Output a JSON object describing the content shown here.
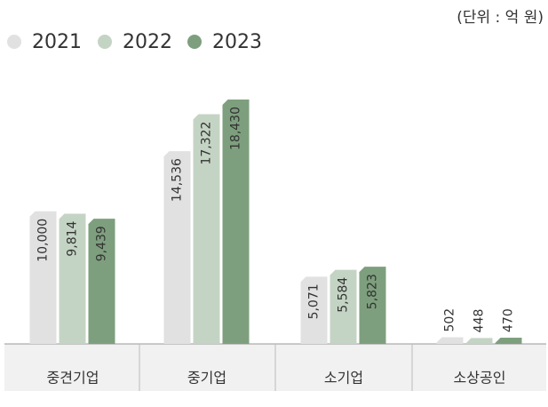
{
  "chart_data": {
    "type": "bar",
    "unit_label": "(단위 : 억 원)",
    "categories": [
      "중견기업",
      "중기업",
      "소기업",
      "소상공인"
    ],
    "series": [
      {
        "name": "2021",
        "color": "#e1e1e1",
        "values": [
          10000,
          14536,
          5071,
          502
        ],
        "value_labels": [
          "10,000",
          "14,536",
          "5,071",
          "502"
        ]
      },
      {
        "name": "2022",
        "color": "#c4d4c4",
        "values": [
          9814,
          17322,
          5584,
          448
        ],
        "value_labels": [
          "9,814",
          "17,322",
          "5,584",
          "448"
        ]
      },
      {
        "name": "2023",
        "color": "#7e9f7e",
        "values": [
          9439,
          18430,
          5823,
          470
        ],
        "value_labels": [
          "9,439",
          "18,430",
          "5,823",
          "470"
        ]
      }
    ],
    "legend": "top-left"
  }
}
